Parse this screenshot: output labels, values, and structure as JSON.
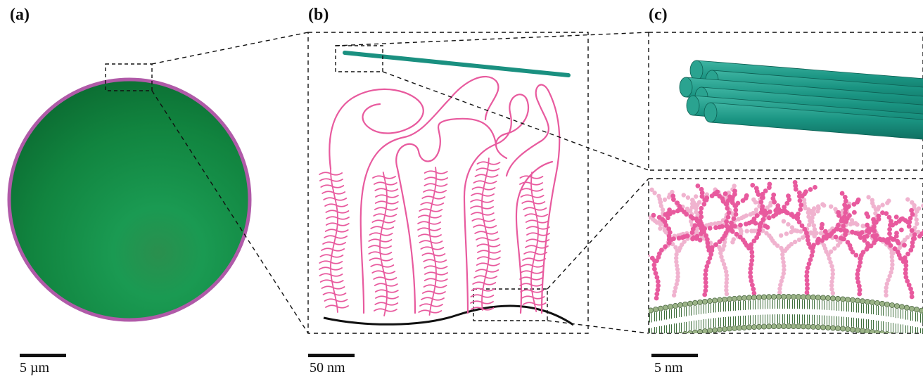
{
  "panels": [
    {
      "id": "a",
      "label": "(a)",
      "scale_bar": "5 µm"
    },
    {
      "id": "b",
      "label": "(b)",
      "scale_bar": "50 nm"
    },
    {
      "id": "c",
      "label": "(c)",
      "scale_bar": "5 nm"
    }
  ],
  "colors": {
    "cell_fill": "#0f7a3c",
    "cell_highlight": "#1fa257",
    "cell_outline": "#b05aa8",
    "filament": "#1a9080",
    "polymer": "#e85a9e",
    "polymer_light": "#f0b3cf",
    "membrane_head": "#9bb387",
    "membrane_tail": "#3d6e3a",
    "surface_line": "#111111"
  }
}
